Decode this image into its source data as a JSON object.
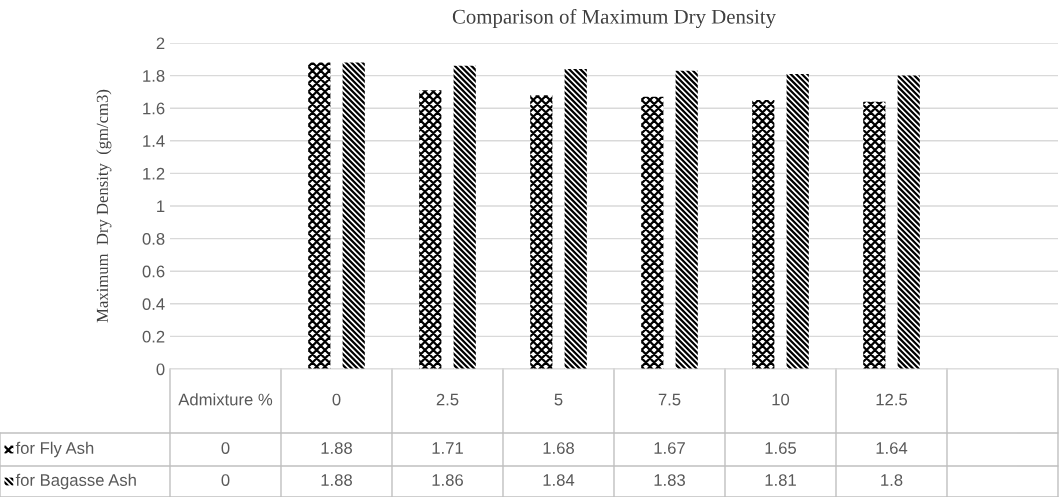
{
  "chart_data": {
    "type": "bar",
    "title": "Comparison of Maximum Dry Density",
    "ylabel": "Maximum  Dry Density  (gm/cm3)",
    "categories": [
      "Admixture %",
      "0",
      "2.5",
      "5",
      "7.5",
      "10",
      "12.5",
      null
    ],
    "series": [
      {
        "name": "for Fly Ash",
        "color": "#000000",
        "values": [
          0,
          1.88,
          1.71,
          1.68,
          1.67,
          1.65,
          1.64,
          null
        ]
      },
      {
        "name": "for Bagasse Ash",
        "color": "#000000",
        "values": [
          0,
          1.88,
          1.86,
          1.84,
          1.83,
          1.81,
          1.8,
          null
        ]
      }
    ],
    "ylim": [
      0,
      2
    ],
    "yticks": [
      0,
      0.2,
      0.4,
      0.6,
      0.8,
      1,
      1.2,
      1.4,
      1.6,
      1.8,
      2
    ],
    "grid": "y",
    "legend": "bottom",
    "data_labels": true
  }
}
